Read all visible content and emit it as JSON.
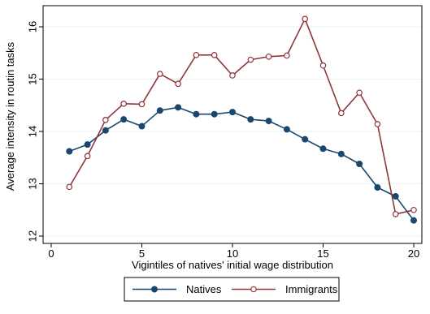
{
  "chart_data": {
    "type": "line",
    "title": "",
    "xlabel": "Vigintiles of natives' initial wage distribution",
    "ylabel": "Average intensity in routin tasks",
    "xlim": [
      0,
      20
    ],
    "ylim": [
      12,
      16
    ],
    "xticks": [
      0,
      5,
      10,
      15,
      20
    ],
    "yticks": [
      12,
      13,
      14,
      15,
      16
    ],
    "grid": "horizontal",
    "legend_position": "bottom",
    "x": [
      1,
      2,
      3,
      4,
      5,
      6,
      7,
      8,
      9,
      10,
      11,
      12,
      13,
      14,
      15,
      16,
      17,
      18,
      19,
      20
    ],
    "series": [
      {
        "name": "Natives",
        "color": "#1a476f",
        "marker": "filled-circle",
        "values": [
          13.62,
          13.75,
          14.02,
          14.23,
          14.1,
          14.4,
          14.46,
          14.33,
          14.33,
          14.37,
          14.23,
          14.2,
          14.04,
          13.85,
          13.67,
          13.57,
          13.38,
          12.93,
          12.76,
          12.3
        ]
      },
      {
        "name": "Immigrants",
        "color": "#90353b",
        "marker": "hollow-circle",
        "values": [
          12.94,
          13.53,
          14.22,
          14.53,
          14.52,
          15.1,
          14.91,
          15.46,
          15.46,
          15.07,
          15.37,
          15.43,
          15.45,
          16.15,
          15.26,
          14.35,
          14.74,
          14.14,
          12.42,
          12.5
        ]
      }
    ]
  }
}
